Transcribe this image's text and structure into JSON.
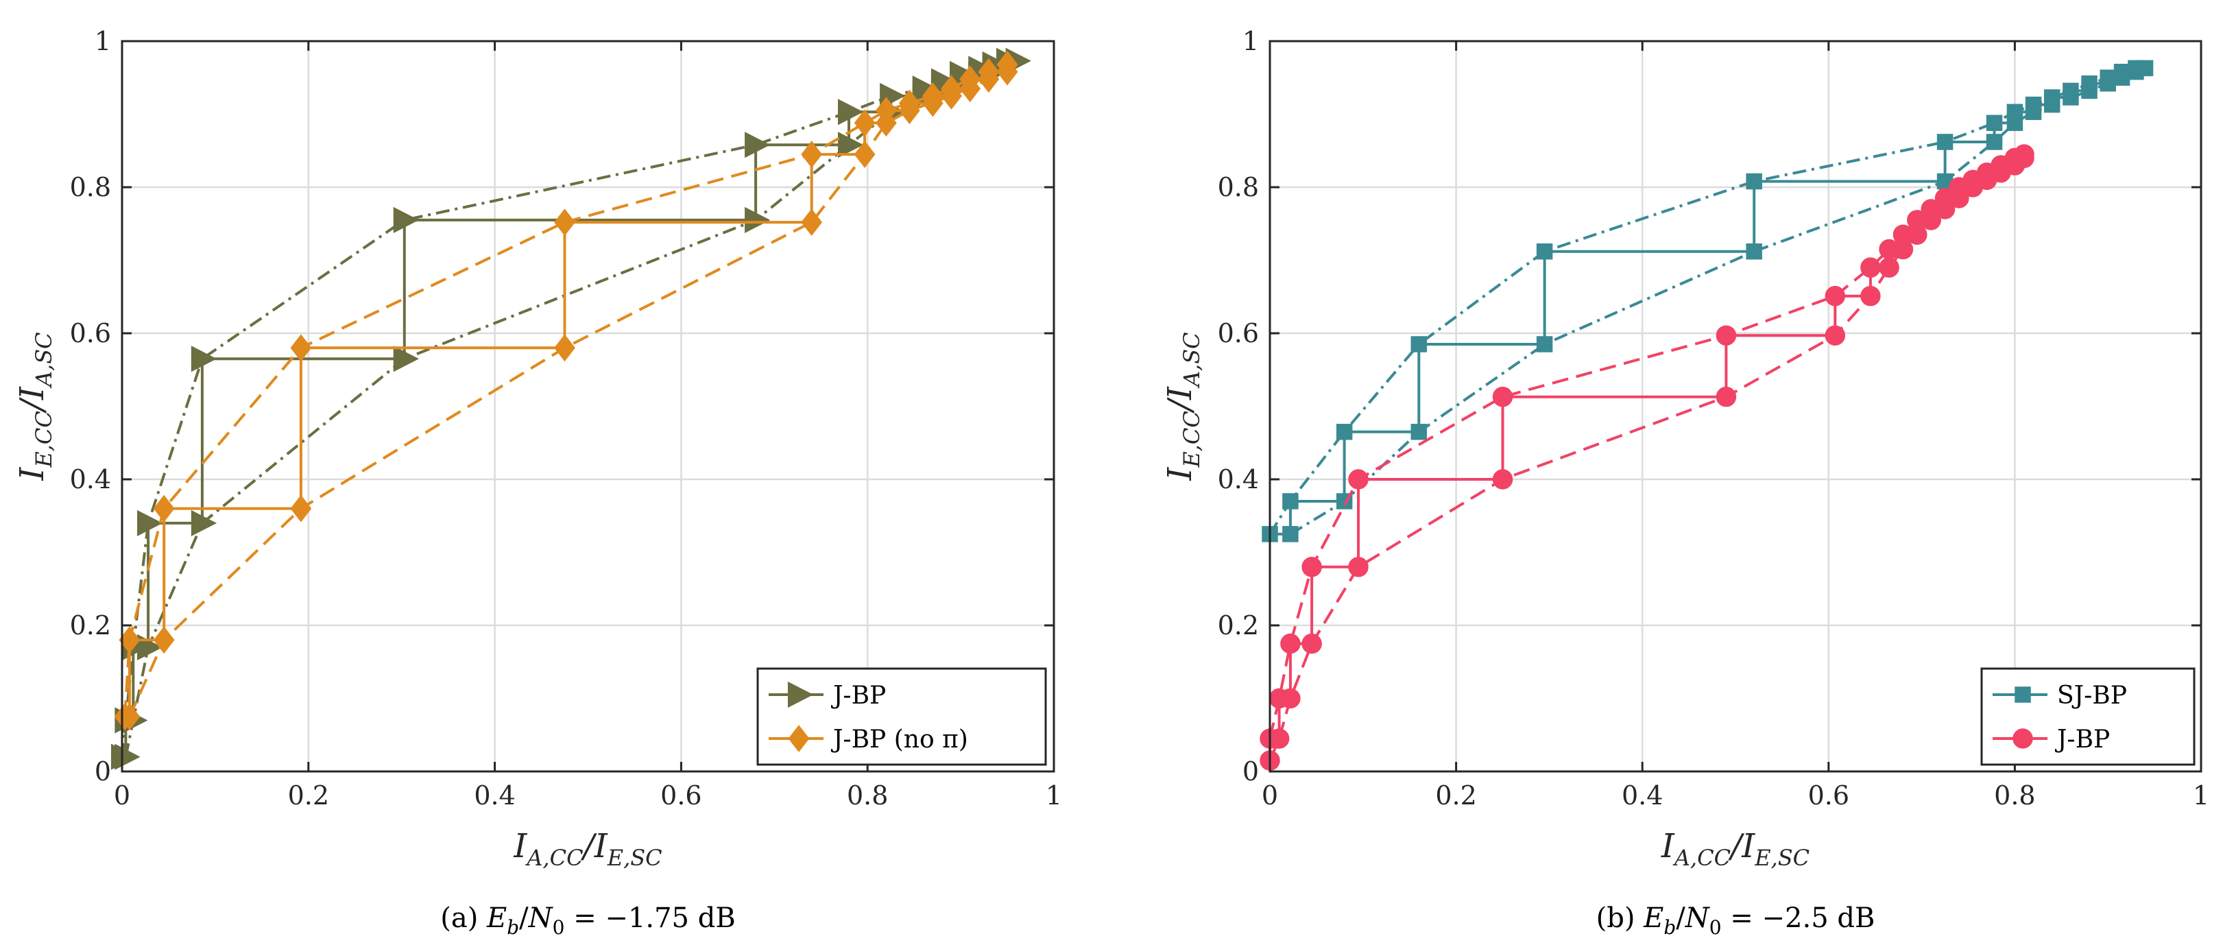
{
  "chart_data": [
    {
      "type": "line",
      "caption_prefix": "(a)",
      "caption_snr": "= −1.75 dB",
      "xlabel": "IA,CC/IE,SC",
      "ylabel": "IE,CC/IA,SC",
      "xlim": [
        0,
        1
      ],
      "ylim": [
        0,
        1
      ],
      "ticks": [
        "0",
        "0.2",
        "0.4",
        "0.6",
        "0.8",
        "1"
      ],
      "grid": true,
      "legend_position": "bottom-right",
      "series": [
        {
          "name": "J-BP",
          "color": "#6b6e40",
          "marker": "triangle-right",
          "trajectory": [
            [
              0,
              0.02
            ],
            [
              0.004,
              0.02
            ],
            [
              0.004,
              0.07
            ],
            [
              0.012,
              0.07
            ],
            [
              0.012,
              0.17
            ],
            [
              0.028,
              0.17
            ],
            [
              0.028,
              0.34
            ],
            [
              0.086,
              0.34
            ],
            [
              0.086,
              0.565
            ],
            [
              0.303,
              0.565
            ],
            [
              0.303,
              0.755
            ],
            [
              0.68,
              0.755
            ],
            [
              0.68,
              0.858
            ],
            [
              0.78,
              0.858
            ],
            [
              0.78,
              0.903
            ],
            [
              0.825,
              0.903
            ],
            [
              0.825,
              0.925
            ],
            [
              0.86,
              0.925
            ],
            [
              0.86,
              0.935
            ],
            [
              0.88,
              0.935
            ],
            [
              0.88,
              0.945
            ],
            [
              0.9,
              0.945
            ],
            [
              0.9,
              0.955
            ],
            [
              0.92,
              0.955
            ],
            [
              0.92,
              0.962
            ],
            [
              0.935,
              0.962
            ],
            [
              0.935,
              0.968
            ],
            [
              0.95,
              0.968
            ],
            [
              0.95,
              0.973
            ],
            [
              0.96,
              0.973
            ]
          ],
          "upper_curve": [
            [
              0,
              0.02
            ],
            [
              0.004,
              0.07
            ],
            [
              0.012,
              0.17
            ],
            [
              0.028,
              0.34
            ],
            [
              0.086,
              0.565
            ],
            [
              0.303,
              0.755
            ],
            [
              0.68,
              0.858
            ],
            [
              0.78,
              0.903
            ],
            [
              0.825,
              0.925
            ],
            [
              0.86,
              0.935
            ],
            [
              0.9,
              0.955
            ],
            [
              0.935,
              0.968
            ],
            [
              0.96,
              0.973
            ]
          ],
          "lower_curve": [
            [
              0.004,
              0.02
            ],
            [
              0.012,
              0.07
            ],
            [
              0.028,
              0.17
            ],
            [
              0.086,
              0.34
            ],
            [
              0.303,
              0.565
            ],
            [
              0.68,
              0.755
            ],
            [
              0.78,
              0.858
            ],
            [
              0.825,
              0.903
            ],
            [
              0.86,
              0.925
            ],
            [
              0.9,
              0.945
            ],
            [
              0.935,
              0.962
            ],
            [
              0.96,
              0.973
            ]
          ]
        },
        {
          "name": "J-BP (no π)",
          "color": "#e08a1e",
          "marker": "diamond",
          "trajectory": [
            [
              0.003,
              0.075
            ],
            [
              0.008,
              0.075
            ],
            [
              0.008,
              0.18
            ],
            [
              0.045,
              0.18
            ],
            [
              0.045,
              0.36
            ],
            [
              0.192,
              0.36
            ],
            [
              0.192,
              0.58
            ],
            [
              0.475,
              0.58
            ],
            [
              0.475,
              0.752
            ],
            [
              0.74,
              0.752
            ],
            [
              0.74,
              0.845
            ],
            [
              0.797,
              0.845
            ],
            [
              0.797,
              0.888
            ],
            [
              0.82,
              0.888
            ],
            [
              0.82,
              0.905
            ],
            [
              0.845,
              0.905
            ],
            [
              0.845,
              0.915
            ],
            [
              0.87,
              0.915
            ],
            [
              0.87,
              0.925
            ],
            [
              0.89,
              0.925
            ],
            [
              0.89,
              0.935
            ],
            [
              0.91,
              0.935
            ],
            [
              0.91,
              0.948
            ],
            [
              0.93,
              0.948
            ],
            [
              0.93,
              0.958
            ],
            [
              0.95,
              0.958
            ],
            [
              0.95,
              0.968
            ]
          ],
          "upper_curve": [
            [
              0.003,
              0.075
            ],
            [
              0.008,
              0.18
            ],
            [
              0.045,
              0.36
            ],
            [
              0.192,
              0.58
            ],
            [
              0.475,
              0.752
            ],
            [
              0.74,
              0.845
            ],
            [
              0.797,
              0.888
            ],
            [
              0.82,
              0.905
            ],
            [
              0.87,
              0.925
            ],
            [
              0.91,
              0.948
            ],
            [
              0.95,
              0.968
            ]
          ],
          "lower_curve": [
            [
              0.008,
              0.075
            ],
            [
              0.045,
              0.18
            ],
            [
              0.192,
              0.36
            ],
            [
              0.475,
              0.58
            ],
            [
              0.74,
              0.752
            ],
            [
              0.797,
              0.845
            ],
            [
              0.82,
              0.888
            ],
            [
              0.845,
              0.905
            ],
            [
              0.89,
              0.925
            ],
            [
              0.93,
              0.948
            ],
            [
              0.95,
              0.958
            ]
          ]
        }
      ]
    },
    {
      "type": "line",
      "caption_prefix": "(b)",
      "caption_snr": "= −2.5 dB",
      "xlabel": "IA,CC/IE,SC",
      "ylabel": "IE,CC/IA,SC",
      "xlim": [
        0,
        1
      ],
      "ylim": [
        0,
        1
      ],
      "ticks": [
        "0",
        "0.2",
        "0.4",
        "0.6",
        "0.8",
        "1"
      ],
      "grid": true,
      "legend_position": "bottom-right",
      "series": [
        {
          "name": "SJ-BP",
          "color": "#3a8a94",
          "marker": "square",
          "trajectory": [
            [
              0,
              0.325
            ],
            [
              0.022,
              0.325
            ],
            [
              0.022,
              0.37
            ],
            [
              0.08,
              0.37
            ],
            [
              0.08,
              0.465
            ],
            [
              0.16,
              0.465
            ],
            [
              0.16,
              0.585
            ],
            [
              0.295,
              0.585
            ],
            [
              0.295,
              0.712
            ],
            [
              0.52,
              0.712
            ],
            [
              0.52,
              0.808
            ],
            [
              0.725,
              0.808
            ],
            [
              0.725,
              0.862
            ],
            [
              0.778,
              0.862
            ],
            [
              0.778,
              0.888
            ],
            [
              0.8,
              0.888
            ],
            [
              0.8,
              0.903
            ],
            [
              0.82,
              0.903
            ],
            [
              0.82,
              0.913
            ],
            [
              0.84,
              0.913
            ],
            [
              0.84,
              0.923
            ],
            [
              0.86,
              0.923
            ],
            [
              0.86,
              0.932
            ],
            [
              0.88,
              0.932
            ],
            [
              0.88,
              0.942
            ],
            [
              0.9,
              0.942
            ],
            [
              0.9,
              0.95
            ],
            [
              0.915,
              0.95
            ],
            [
              0.915,
              0.958
            ],
            [
              0.93,
              0.958
            ],
            [
              0.93,
              0.963
            ],
            [
              0.94,
              0.963
            ]
          ],
          "upper_curve": [
            [
              0,
              0.325
            ],
            [
              0.022,
              0.37
            ],
            [
              0.08,
              0.465
            ],
            [
              0.16,
              0.585
            ],
            [
              0.295,
              0.712
            ],
            [
              0.52,
              0.808
            ],
            [
              0.725,
              0.862
            ],
            [
              0.778,
              0.888
            ],
            [
              0.8,
              0.903
            ],
            [
              0.82,
              0.913
            ],
            [
              0.86,
              0.932
            ],
            [
              0.9,
              0.95
            ],
            [
              0.94,
              0.963
            ]
          ],
          "lower_curve": [
            [
              0.022,
              0.325
            ],
            [
              0.08,
              0.37
            ],
            [
              0.16,
              0.465
            ],
            [
              0.295,
              0.585
            ],
            [
              0.52,
              0.712
            ],
            [
              0.725,
              0.808
            ],
            [
              0.778,
              0.862
            ],
            [
              0.8,
              0.888
            ],
            [
              0.82,
              0.903
            ],
            [
              0.84,
              0.913
            ],
            [
              0.88,
              0.932
            ],
            [
              0.915,
              0.95
            ],
            [
              0.94,
              0.963
            ]
          ]
        },
        {
          "name": "J-BP",
          "color": "#f24266",
          "marker": "circle",
          "trajectory": [
            [
              0,
              0.015
            ],
            [
              0,
              0.045
            ],
            [
              0.01,
              0.045
            ],
            [
              0.01,
              0.1
            ],
            [
              0.022,
              0.1
            ],
            [
              0.022,
              0.175
            ],
            [
              0.045,
              0.175
            ],
            [
              0.045,
              0.28
            ],
            [
              0.095,
              0.28
            ],
            [
              0.095,
              0.4
            ],
            [
              0.25,
              0.4
            ],
            [
              0.25,
              0.513
            ],
            [
              0.49,
              0.513
            ],
            [
              0.49,
              0.597
            ],
            [
              0.607,
              0.597
            ],
            [
              0.607,
              0.651
            ],
            [
              0.645,
              0.651
            ],
            [
              0.645,
              0.69
            ],
            [
              0.665,
              0.69
            ],
            [
              0.665,
              0.715
            ],
            [
              0.68,
              0.715
            ],
            [
              0.68,
              0.735
            ],
            [
              0.695,
              0.735
            ],
            [
              0.695,
              0.755
            ],
            [
              0.71,
              0.755
            ],
            [
              0.71,
              0.77
            ],
            [
              0.725,
              0.77
            ],
            [
              0.725,
              0.785
            ],
            [
              0.74,
              0.785
            ],
            [
              0.74,
              0.8
            ],
            [
              0.755,
              0.8
            ],
            [
              0.755,
              0.81
            ],
            [
              0.77,
              0.81
            ],
            [
              0.77,
              0.82
            ],
            [
              0.785,
              0.82
            ],
            [
              0.785,
              0.83
            ],
            [
              0.8,
              0.83
            ],
            [
              0.8,
              0.84
            ],
            [
              0.81,
              0.84
            ],
            [
              0.81,
              0.845
            ]
          ],
          "upper_curve": [
            [
              0,
              0.045
            ],
            [
              0.01,
              0.1
            ],
            [
              0.022,
              0.175
            ],
            [
              0.045,
              0.28
            ],
            [
              0.095,
              0.4
            ],
            [
              0.25,
              0.513
            ],
            [
              0.49,
              0.597
            ],
            [
              0.607,
              0.651
            ],
            [
              0.645,
              0.69
            ],
            [
              0.665,
              0.715
            ],
            [
              0.695,
              0.755
            ],
            [
              0.74,
              0.8
            ],
            [
              0.77,
              0.82
            ],
            [
              0.81,
              0.845
            ]
          ],
          "lower_curve": [
            [
              0,
              0.015
            ],
            [
              0.01,
              0.045
            ],
            [
              0.022,
              0.1
            ],
            [
              0.045,
              0.175
            ],
            [
              0.095,
              0.28
            ],
            [
              0.25,
              0.4
            ],
            [
              0.49,
              0.513
            ],
            [
              0.607,
              0.597
            ],
            [
              0.645,
              0.651
            ],
            [
              0.665,
              0.69
            ],
            [
              0.68,
              0.715
            ],
            [
              0.71,
              0.755
            ],
            [
              0.755,
              0.8
            ],
            [
              0.785,
              0.82
            ],
            [
              0.81,
              0.845
            ]
          ]
        }
      ]
    }
  ]
}
